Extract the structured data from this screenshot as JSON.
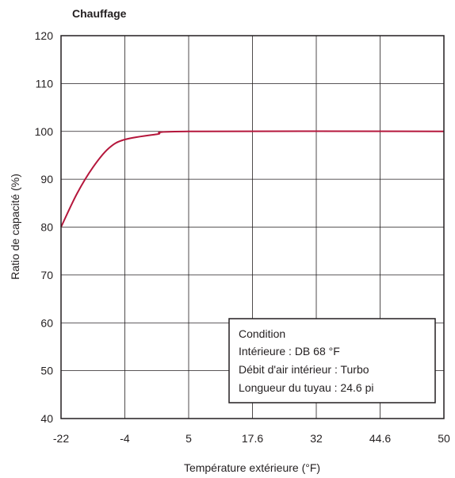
{
  "chart_data": {
    "type": "line",
    "title": "Chauffage",
    "xlabel": "Température extérieure (°F)",
    "ylabel": "Ratio de capacité (%)",
    "x_ticks": [
      "-22",
      "-4",
      "5",
      "17.6",
      "32",
      "44.6",
      "50"
    ],
    "y_ticks": [
      "40",
      "50",
      "60",
      "70",
      "80",
      "90",
      "100",
      "110",
      "120"
    ],
    "ylim": [
      40,
      120
    ],
    "grid": true,
    "series": [
      {
        "color": "#b5173c",
        "points": [
          {
            "x_index": 0,
            "y": 80
          },
          {
            "x_index": 0.25,
            "y": 87
          },
          {
            "x_index": 0.5,
            "y": 92.5
          },
          {
            "x_index": 0.75,
            "y": 96.5
          },
          {
            "x_index": 1,
            "y": 98.3
          },
          {
            "x_index": 1.5,
            "y": 99.4
          },
          {
            "x_index": 2,
            "y": 100
          },
          {
            "x_index": 6,
            "y": 100
          }
        ]
      }
    ],
    "annotation": {
      "lines": [
        "Condition",
        "Intérieure : DB 68 °F",
        "Débit d'air intérieur : Turbo",
        "Longueur du tuyau : 24.6 pi"
      ]
    }
  }
}
